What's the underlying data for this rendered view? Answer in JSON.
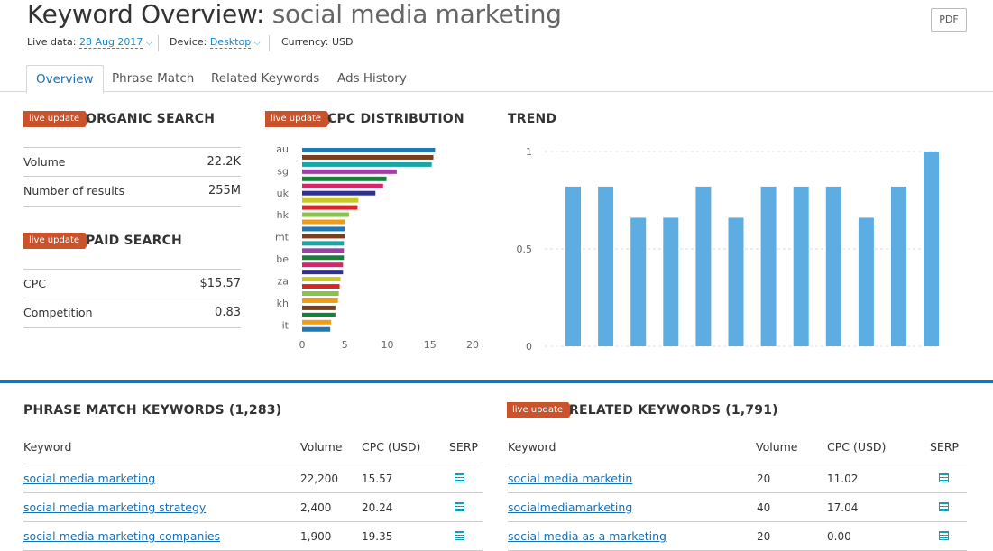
{
  "header": {
    "title_prefix": "Keyword Overview:",
    "title_keyword": "social media marketing",
    "pdf_label": "PDF",
    "live_data_label": "Live data:",
    "live_data_value": "28 Aug 2017",
    "device_label": "Device:",
    "device_value": "Desktop",
    "currency_label": "Currency: USD"
  },
  "tabs": [
    {
      "label": "Overview",
      "active": true
    },
    {
      "label": "Phrase Match",
      "active": false
    },
    {
      "label": "Related Keywords",
      "active": false
    },
    {
      "label": "Ads History",
      "active": false
    }
  ],
  "badge_label": "live update",
  "organic": {
    "heading": "ORGANIC SEARCH",
    "rows": [
      {
        "label": "Volume",
        "value": "22.2K"
      },
      {
        "label": "Number of results",
        "value": "255M"
      }
    ]
  },
  "paid": {
    "heading": "PAID SEARCH",
    "rows": [
      {
        "label": "CPC",
        "value": "$15.57"
      },
      {
        "label": "Competition",
        "value": "0.83"
      }
    ]
  },
  "cpc_distribution": {
    "heading": "CPC DISTRIBUTION",
    "y_labels": [
      "au",
      "sg",
      "uk",
      "hk",
      "mt",
      "be",
      "za",
      "kh",
      "it"
    ],
    "x_ticks": [
      "0",
      "5",
      "10",
      "15",
      "20"
    ]
  },
  "trend": {
    "heading": "TREND",
    "y_ticks": [
      "1",
      "0.5",
      "0"
    ]
  },
  "chart_data": [
    {
      "type": "bar",
      "orientation": "horizontal",
      "title": "CPC DISTRIBUTION",
      "y_labels": [
        "au",
        "sg",
        "uk",
        "hk",
        "mt",
        "be",
        "za",
        "kh",
        "it"
      ],
      "values": [
        15.6,
        15.4,
        15.2,
        11.1,
        9.9,
        9.5,
        8.6,
        6.6,
        6.5,
        5.5,
        5.0,
        5.0,
        5.0,
        4.9,
        4.9,
        4.9,
        4.8,
        4.8,
        4.5,
        4.4,
        4.3,
        4.2,
        3.9,
        3.9,
        3.4,
        3.3
      ],
      "colors": [
        "#1f77b4",
        "#7b3f1e",
        "#17a5a5",
        "#9e3fa8",
        "#1a7f3a",
        "#d6256d",
        "#303090",
        "#c8c81e",
        "#d62728",
        "#8bc34a",
        "#f39c12",
        "#1f77b4",
        "#7b3f1e",
        "#17a5a5",
        "#9e3fa8",
        "#1a7f3a",
        "#d6256d",
        "#303090",
        "#c8c81e",
        "#d62728",
        "#8bc34a",
        "#f39c12",
        "#7b3f1e",
        "#1a7f3a",
        "#f39c12",
        "#1f77b4"
      ],
      "xlim": [
        0,
        20
      ],
      "x_ticks": [
        0,
        5,
        10,
        15,
        20
      ]
    },
    {
      "type": "bar",
      "title": "TREND",
      "values": [
        0.82,
        0.82,
        0.66,
        0.66,
        0.82,
        0.66,
        0.82,
        0.82,
        0.82,
        0.66,
        0.82,
        1.0
      ],
      "ylim": [
        0,
        1
      ],
      "y_ticks": [
        0,
        0.5,
        1
      ],
      "color": "#5dade2"
    }
  ],
  "phrase_match": {
    "heading": "PHRASE MATCH KEYWORDS (1,283)",
    "columns": [
      "Keyword",
      "Volume",
      "CPC (USD)",
      "SERP"
    ],
    "rows": [
      {
        "keyword": "social media marketing",
        "volume": "22,200",
        "cpc": "15.57"
      },
      {
        "keyword": "social media marketing strategy",
        "volume": "2,400",
        "cpc": "20.24"
      },
      {
        "keyword": "social media marketing companies",
        "volume": "1,900",
        "cpc": "19.35"
      }
    ]
  },
  "related": {
    "heading": "RELATED KEYWORDS (1,791)",
    "columns": [
      "Keyword",
      "Volume",
      "CPC (USD)",
      "SERP"
    ],
    "rows": [
      {
        "keyword": "social media marketin",
        "volume": "20",
        "cpc": "11.02"
      },
      {
        "keyword": "socialmediamarketing",
        "volume": "40",
        "cpc": "17.04"
      },
      {
        "keyword": "social media as a marketing",
        "volume": "20",
        "cpc": "0.00"
      }
    ]
  },
  "colors": {
    "accent_blue": "#1f6fb5",
    "link_blue": "#1a6fb3",
    "badge_orange": "#c8532c",
    "trend_bar": "#5dade2",
    "serp_icon": "#1a9bb0"
  },
  "icons": {
    "pdf": "pdf-button",
    "serp": "serp-icon",
    "chevron": "chevron-down-icon"
  }
}
